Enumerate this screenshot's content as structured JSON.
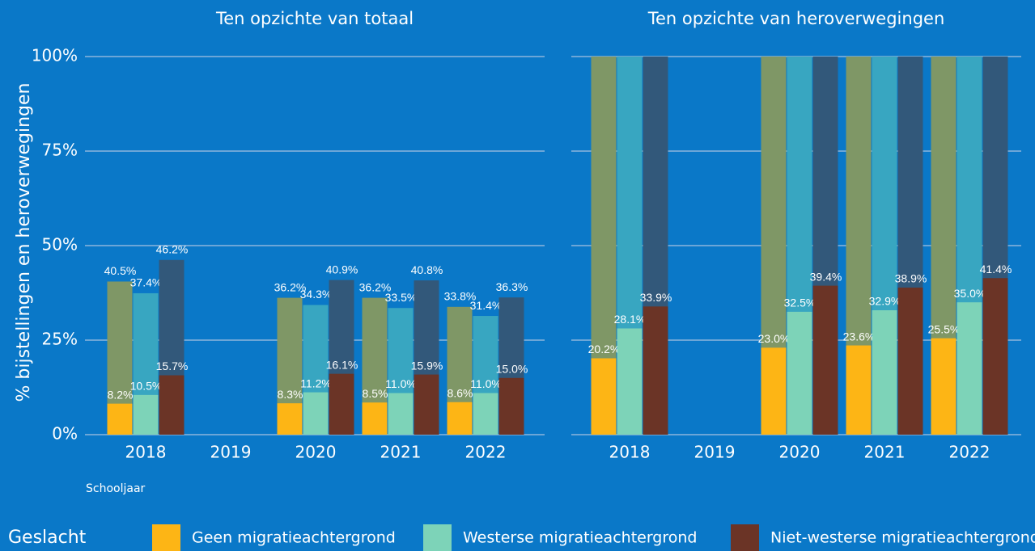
{
  "ylabel": "% bijstellingen en heroverwegingen",
  "xlabel": "Schooljaar",
  "legend": {
    "title": "Geslacht",
    "series": [
      {
        "name": "Geen migratieachtergrond",
        "color": "#fdb515",
        "total_color": "#7f9766"
      },
      {
        "name": "Westerse migratieachtergrond",
        "color": "#7dd3b8",
        "total_color": "#38a6c1"
      },
      {
        "name": "Niet-westerse migratieachtergrond",
        "color": "#6b3426",
        "total_color": "#32587a"
      }
    ]
  },
  "chart_data": [
    {
      "type": "bar",
      "title": "Ten opzichte van totaal",
      "categories": [
        "2018",
        "2019",
        "2020",
        "2021",
        "2022"
      ],
      "ylim": [
        0,
        100
      ],
      "yticks": [
        {
          "value": 0,
          "label": "0%"
        },
        {
          "value": 25,
          "label": "25%"
        },
        {
          "value": 50,
          "label": "50%"
        },
        {
          "value": 75,
          "label": "75%"
        },
        {
          "value": 100,
          "label": "100%"
        }
      ],
      "grid": true,
      "series": [
        {
          "values": [
            8.2,
            null,
            8.3,
            8.5,
            8.6
          ],
          "value_labels": [
            "8.2%",
            null,
            "8.3%",
            "8.5%",
            "8.6%"
          ],
          "totals": [
            40.5,
            null,
            36.2,
            36.2,
            33.8
          ],
          "total_labels": [
            "40.5%",
            null,
            "36.2%",
            "36.2%",
            "33.8%"
          ]
        },
        {
          "values": [
            10.5,
            null,
            11.2,
            11.0,
            11.0
          ],
          "value_labels": [
            "10.5%",
            null,
            "11.2%",
            "11.0%",
            "11.0%"
          ],
          "totals": [
            37.4,
            null,
            34.3,
            33.5,
            31.4
          ],
          "total_labels": [
            "37.4%",
            null,
            "34.3%",
            "33.5%",
            "31.4%"
          ]
        },
        {
          "values": [
            15.7,
            null,
            16.1,
            15.9,
            15.0
          ],
          "value_labels": [
            "15.7%",
            null,
            "16.1%",
            "15.9%",
            "15.0%"
          ],
          "totals": [
            46.2,
            null,
            40.9,
            40.8,
            36.3
          ],
          "total_labels": [
            "46.2%",
            null,
            "40.9%",
            "40.8%",
            "36.3%"
          ]
        }
      ]
    },
    {
      "type": "bar",
      "title": "Ten opzichte van heroverwegingen",
      "categories": [
        "2018",
        "2019",
        "2020",
        "2021",
        "2022"
      ],
      "ylim": [
        0,
        100
      ],
      "yticks": [
        0,
        25,
        50,
        75,
        100
      ],
      "grid": true,
      "series": [
        {
          "values": [
            20.2,
            null,
            23.0,
            23.6,
            25.5
          ],
          "value_labels": [
            "20.2%",
            null,
            "23.0%",
            "23.6%",
            "25.5%"
          ],
          "totals": [
            100,
            null,
            100,
            100,
            100
          ]
        },
        {
          "values": [
            28.1,
            null,
            32.5,
            32.9,
            35.0
          ],
          "value_labels": [
            "28.1%",
            null,
            "32.5%",
            "32.9%",
            "35.0%"
          ],
          "totals": [
            100,
            null,
            100,
            100,
            100
          ]
        },
        {
          "values": [
            33.9,
            null,
            39.4,
            38.9,
            41.4
          ],
          "value_labels": [
            "33.9%",
            null,
            "39.4%",
            "38.9%",
            "41.4%"
          ],
          "totals": [
            100,
            null,
            100,
            100,
            100
          ]
        }
      ]
    }
  ]
}
